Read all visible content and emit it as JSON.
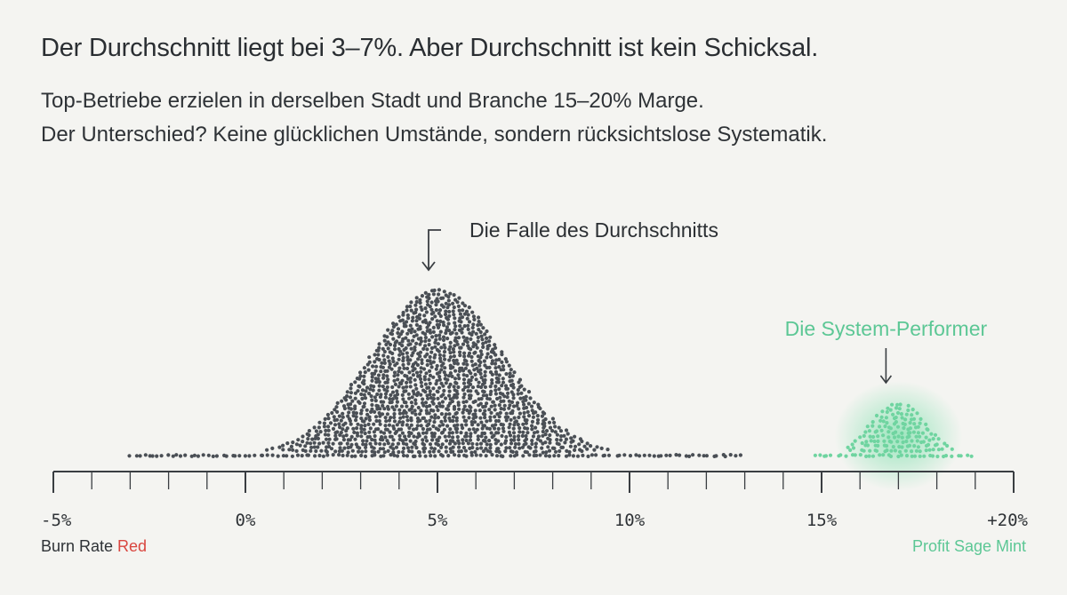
{
  "header": {
    "title": "Der Durchschnitt liegt bei 3–7%. Aber Durchschnitt ist kein Schicksal.",
    "subtitle_line1": "Top-Betriebe erzielen in derselben Stadt und Branche 15–20% Marge.",
    "subtitle_line2": "Der Unterschied? Keine glücklichen Umstände, sondern rücksichtslose Systematik."
  },
  "legend": {
    "left_prefix": "Burn Rate ",
    "left_highlight": "Red",
    "right": "Profit Sage Mint"
  },
  "colors": {
    "background": "#f4f4f1",
    "main_dots": "#4a4f55",
    "performer_dots": "#6fd4a0",
    "performer_glow": "#7fe0ad",
    "burn_red": "#d9463f",
    "sage_mint": "#5cc795",
    "axis": "#3a3e42"
  },
  "chart_data": {
    "type": "dot-distribution",
    "xlabel": "",
    "ylabel": "",
    "xlim": [
      -5,
      20
    ],
    "tick_labels": [
      {
        "value": -5,
        "label": "-5%"
      },
      {
        "value": 0,
        "label": "0%"
      },
      {
        "value": 5,
        "label": "5%"
      },
      {
        "value": 10,
        "label": "10%"
      },
      {
        "value": 15,
        "label": "15%"
      },
      {
        "value": 20,
        "label": "+20%"
      }
    ],
    "minor_tick_step": 1,
    "series": [
      {
        "center": 5,
        "spread": 1.7,
        "range": [
          -3,
          13
        ],
        "peak_height": 0.93
      },
      {
        "center": 17,
        "spread": 0.7,
        "range": [
          14.8,
          19
        ],
        "peak_height": 0.29
      }
    ],
    "annotations": [
      {
        "text": "Die Falle des Durchschnitts",
        "x": 5
      },
      {
        "text": "Die System-Performer",
        "x": 17
      }
    ]
  }
}
